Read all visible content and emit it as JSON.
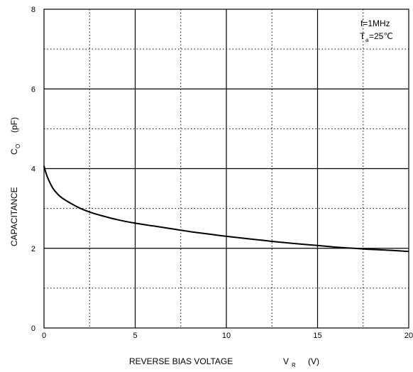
{
  "chart_data": {
    "type": "line",
    "xlabel": "REVERSE BIAS VOLTAGE",
    "xlabel_symbol": "V",
    "xlabel_subscript": "R",
    "xlabel_unit": "(V)",
    "ylabel": "CAPACITANCE",
    "ylabel_symbol": "C",
    "ylabel_subscript": "O",
    "ylabel_unit": "(pF)",
    "xlim": [
      0,
      20
    ],
    "ylim": [
      0,
      8
    ],
    "xticks": [
      "0",
      "5",
      "10",
      "15",
      "20"
    ],
    "yticks": [
      "0",
      "2",
      "4",
      "6",
      "8"
    ],
    "grid": {
      "major": "solid",
      "minor": "dotted"
    },
    "conditions": {
      "freq": "f=1MHz",
      "temp_symbol": "T",
      "temp_subscript": "a",
      "temp_value": "=25℃"
    },
    "series": [
      {
        "x": [
          0,
          0.1,
          0.25,
          0.5,
          0.75,
          1,
          1.5,
          2,
          2.5,
          3,
          4,
          5,
          6,
          7,
          8,
          9,
          10,
          11,
          12,
          13,
          14,
          15,
          16,
          17,
          18,
          19,
          20
        ],
        "y": [
          4.07,
          3.9,
          3.72,
          3.5,
          3.36,
          3.26,
          3.12,
          3.0,
          2.91,
          2.84,
          2.72,
          2.63,
          2.56,
          2.49,
          2.42,
          2.36,
          2.3,
          2.25,
          2.2,
          2.15,
          2.11,
          2.07,
          2.03,
          2.0,
          1.97,
          1.95,
          1.92
        ]
      }
    ]
  }
}
